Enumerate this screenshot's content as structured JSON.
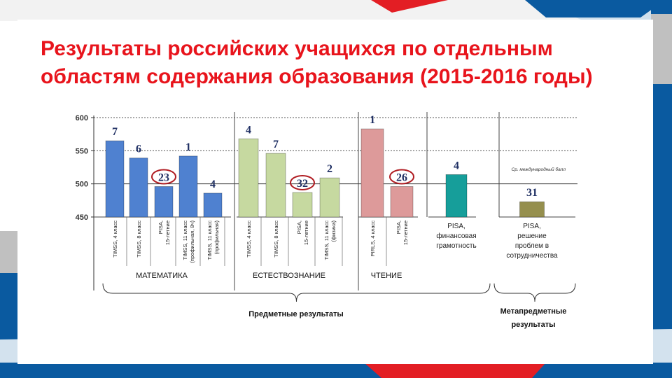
{
  "title_line1": "Результаты российских учащихся по отдельным",
  "title_line2": "областям содержания образования (2015-2016 годы)",
  "colors": {
    "title": "#e8141c",
    "blue": "#0a5aa0",
    "red": "#e31e24",
    "math": "#4f81d0",
    "science": "#c6d9a0",
    "reading": "#dd9a9a",
    "finance": "#169e9a",
    "collab": "#958f4e",
    "rank": "#1f2f63",
    "circle": "#b01c22"
  },
  "chart_data": {
    "type": "bar",
    "ylim": [
      450,
      600
    ],
    "yticks": [
      450,
      500,
      550,
      600
    ],
    "reference_value": 500,
    "reference_label": "Ср. международный балл",
    "groups": [
      {
        "name": "МАТЕМАТИКА",
        "color_key": "math"
      },
      {
        "name": "ЕСТЕСТВОЗНАНИЕ",
        "color_key": "science"
      },
      {
        "name": "ЧТЕНИЕ",
        "color_key": "reading"
      },
      {
        "name": "",
        "color_key": "finance"
      },
      {
        "name": "",
        "color_key": "collab"
      }
    ],
    "bars": [
      {
        "group": 0,
        "label": [
          "TIMSS, 4 класс"
        ],
        "value": 565,
        "rank": "7",
        "circled": false
      },
      {
        "group": 0,
        "label": [
          "TIMSS, 8 класс"
        ],
        "value": 539,
        "rank": "6",
        "circled": false
      },
      {
        "group": 0,
        "label": [
          "PISA,",
          "15-летние"
        ],
        "value": 496,
        "rank": "23",
        "circled": true
      },
      {
        "group": 0,
        "label": [
          "TIMSS, 11 класс",
          "(профильная, 8ч)"
        ],
        "value": 542,
        "rank": "1",
        "circled": false
      },
      {
        "group": 0,
        "label": [
          "TIMSS, 11 класс",
          "(профильная)"
        ],
        "value": 486,
        "rank": "4",
        "circled": false
      },
      {
        "group": 1,
        "label": [
          "TIMSS, 4 класс"
        ],
        "value": 568,
        "rank": "4",
        "circled": false
      },
      {
        "group": 1,
        "label": [
          "TIMSS, 8 класс"
        ],
        "value": 546,
        "rank": "7",
        "circled": false
      },
      {
        "group": 1,
        "label": [
          "PISA,",
          "15-летние"
        ],
        "value": 487,
        "rank": "32",
        "circled": true
      },
      {
        "group": 1,
        "label": [
          "TIMSS, 11 класс",
          "(физика)"
        ],
        "value": 509,
        "rank": "2",
        "circled": false
      },
      {
        "group": 2,
        "label": [
          "PIRLS, 4 класс"
        ],
        "value": 583,
        "rank": "1",
        "circled": false
      },
      {
        "group": 2,
        "label": [
          "PISA,",
          "15-летние"
        ],
        "value": 496,
        "rank": "26",
        "circled": true
      },
      {
        "group": 3,
        "label": [
          "PISA,",
          "финансовая",
          "грамотность"
        ],
        "value": 514,
        "rank": "4",
        "circled": false
      },
      {
        "group": 4,
        "label": [
          "PISA,",
          "решение",
          "проблем в",
          "сотрудничества"
        ],
        "value": 473,
        "rank": "31",
        "circled": false
      }
    ],
    "subject_results_label": "Предметные результаты",
    "meta_results_label": [
      "Метапредметные",
      "результаты"
    ]
  }
}
